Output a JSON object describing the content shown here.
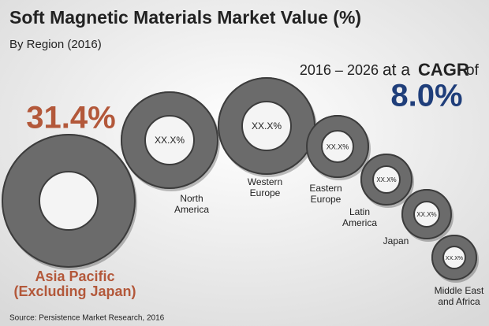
{
  "header": {
    "title": "Soft Magnetic Materials Market Value (%)",
    "subtitle": "By Region (2016)"
  },
  "cagr": {
    "period": "2016 – 2026",
    "text1": "at a",
    "label": "CAGR",
    "text2": "of",
    "value": "8.0%"
  },
  "regions": [
    {
      "lines": [
        "Asia Pacific",
        "(Excluding Japan)"
      ],
      "value": "31.4%"
    },
    {
      "lines": [
        "North",
        "America"
      ],
      "value": "XX.X%"
    },
    {
      "lines": [
        "Western",
        "Europe"
      ],
      "value": "XX.X%"
    },
    {
      "lines": [
        "Eastern",
        "Europe"
      ],
      "value": "XX.X%"
    },
    {
      "lines": [
        "Latin",
        "America"
      ],
      "value": "XX.X%"
    },
    {
      "lines": [
        "Japan"
      ],
      "value": "XX.X%"
    },
    {
      "lines": [
        "Middle East",
        "and Africa"
      ],
      "value": "XX.X%"
    }
  ],
  "source": "Source: Persistence Market Research, 2016"
}
